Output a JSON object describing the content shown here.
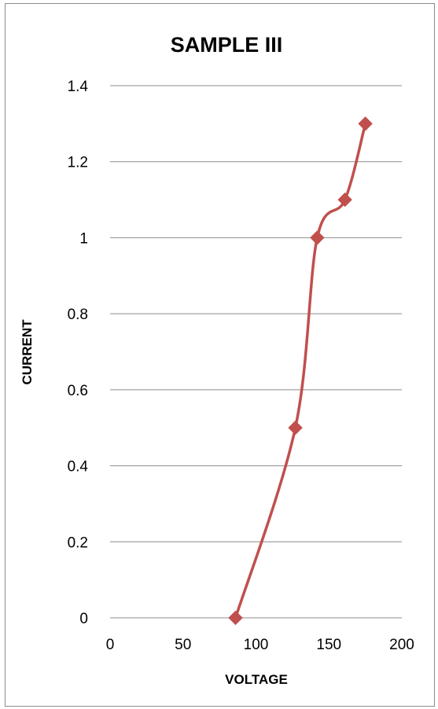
{
  "chart_data": {
    "type": "line",
    "title": "SAMPLE III",
    "xlabel": "VOLTAGE",
    "ylabel": "CURRENT",
    "xlim": [
      0,
      200
    ],
    "ylim": [
      0,
      1.4
    ],
    "x_ticks": [
      "0",
      "50",
      "100",
      "150",
      "200"
    ],
    "y_ticks": [
      "0",
      "0.2",
      "0.4",
      "0.6",
      "0.8",
      "1",
      "1.2",
      "1.4"
    ],
    "grid": "horizontal",
    "legend": "none",
    "series": [
      {
        "color": "#c0504d",
        "marker": "diamond",
        "smooth": true,
        "x": [
          86,
          127,
          142,
          161,
          175
        ],
        "y": [
          0,
          0.5,
          1.0,
          1.1,
          1.3
        ]
      }
    ]
  }
}
